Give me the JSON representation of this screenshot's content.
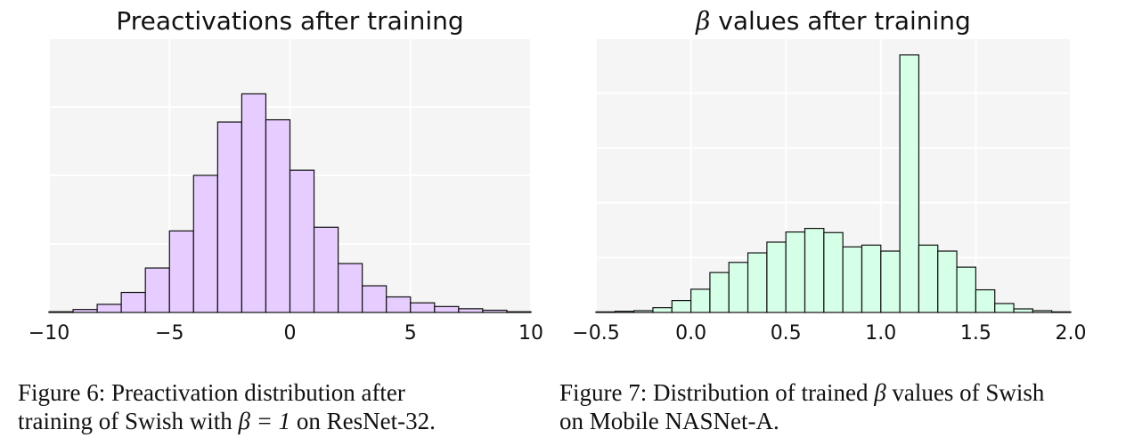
{
  "figures": [
    {
      "caption_label": "Figure 6:",
      "caption_lines": [
        "Preactivation distribution after",
        "training of Swish with "
      ],
      "caption_math": "β = 1",
      "caption_tail": " on ResNet-32."
    },
    {
      "caption_label": "Figure 7:",
      "caption_lines": [
        "Distribution of trained ",
        " values of Swish",
        "on Mobile NASNet-A."
      ],
      "caption_math": "β"
    }
  ],
  "chart_data": [
    {
      "type": "bar",
      "title": "Preactivations after training",
      "fill_color": "#e6ccff",
      "edge_color": "#111111",
      "background": "#f5f5f5",
      "grid": true,
      "xlim": [
        -10,
        10
      ],
      "ylim": [
        0,
        37
      ],
      "xticks": [
        -10,
        -5,
        0,
        5,
        10
      ],
      "xtick_labels": [
        "−10",
        "−5",
        "0",
        "5",
        "10"
      ],
      "bin_width": 1,
      "bin_starts": [
        -10,
        -9,
        -8,
        -7,
        -6,
        -5,
        -4,
        -3,
        -2,
        -1,
        0,
        1,
        2,
        3,
        4,
        5,
        6,
        7,
        8,
        9
      ],
      "values": [
        0.1,
        0.4,
        1.1,
        2.7,
        6.0,
        11.0,
        18.5,
        25.7,
        29.5,
        26.0,
        19.2,
        11.5,
        6.6,
        3.6,
        2.1,
        1.3,
        0.8,
        0.5,
        0.3,
        0.1
      ]
    },
    {
      "type": "bar",
      "title": "β values after training",
      "fill_color": "#d6ffe8",
      "edge_color": "#111111",
      "background": "#f5f5f5",
      "grid": true,
      "xlim": [
        -0.5,
        2.0
      ],
      "ylim": [
        0,
        46
      ],
      "xticks": [
        -0.5,
        0.0,
        0.5,
        1.0,
        1.5,
        2.0
      ],
      "xtick_labels": [
        "−0.5",
        "0.0",
        "0.5",
        "1.0",
        "1.5",
        "2.0"
      ],
      "bin_width": 0.1,
      "bin_starts": [
        -0.5,
        -0.4,
        -0.3,
        -0.2,
        -0.1,
        0.0,
        0.1,
        0.2,
        0.3,
        0.4,
        0.5,
        0.6,
        0.7,
        0.8,
        0.9,
        1.0,
        1.1,
        1.2,
        1.3,
        1.4,
        1.5,
        1.6,
        1.7,
        1.8,
        1.9
      ],
      "values": [
        0.1,
        0.2,
        0.3,
        0.8,
        2.0,
        3.9,
        6.7,
        8.4,
        10.0,
        11.8,
        13.5,
        14.1,
        13.4,
        11.0,
        11.3,
        10.3,
        43.2,
        11.3,
        10.3,
        7.6,
        3.8,
        1.5,
        0.6,
        0.3,
        0.1
      ]
    }
  ]
}
